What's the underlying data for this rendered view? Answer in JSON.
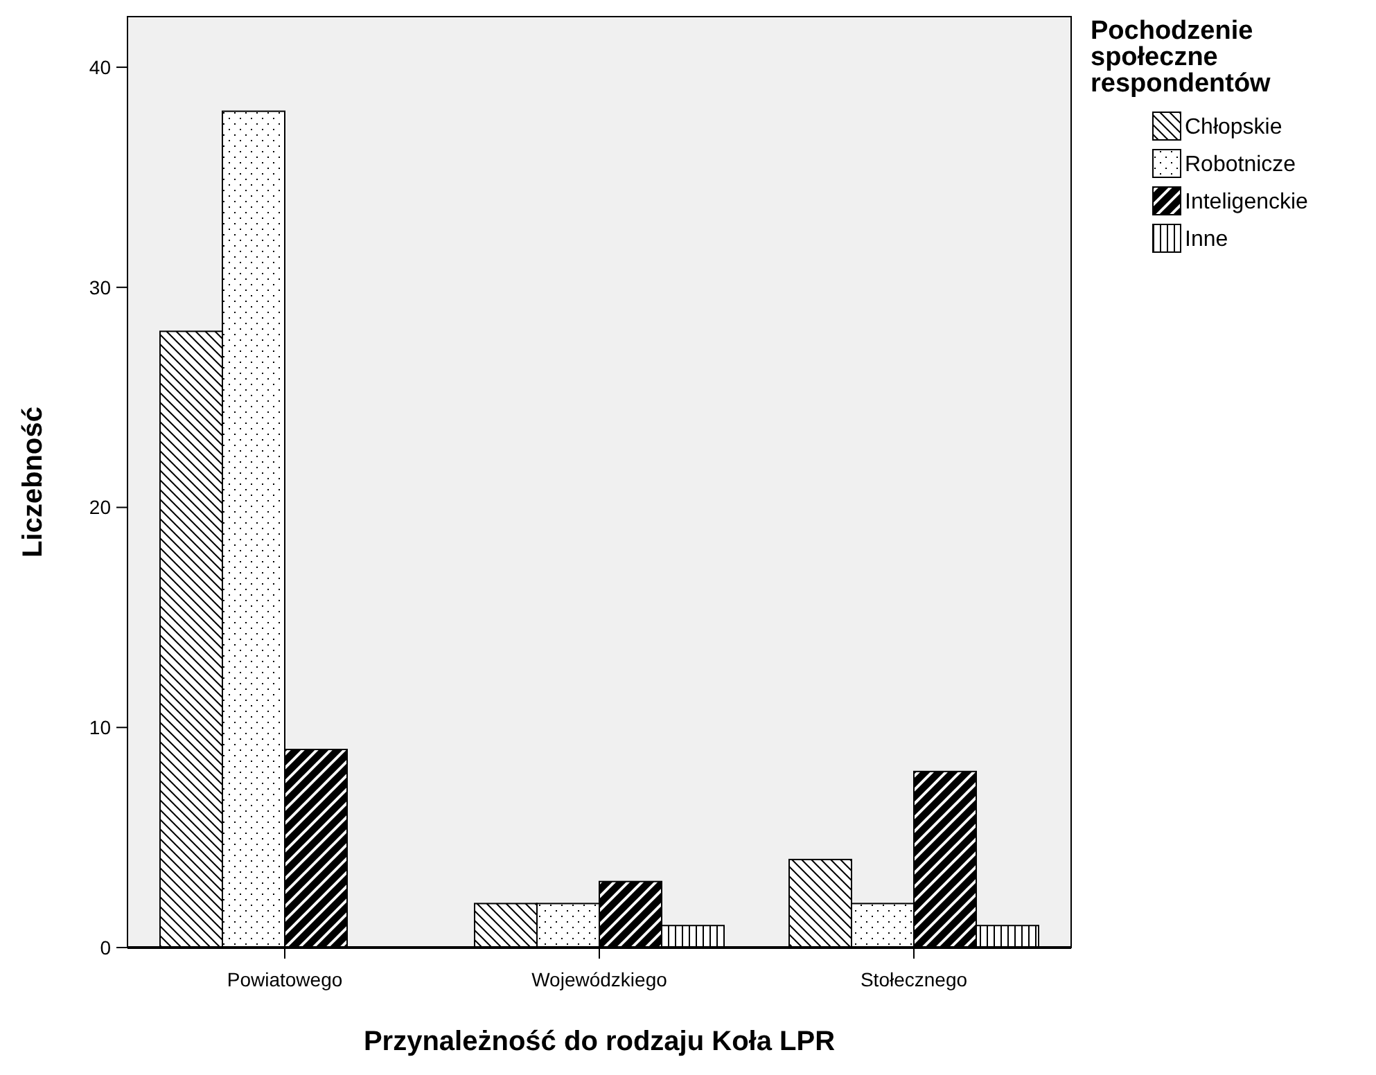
{
  "chart_data": {
    "type": "bar",
    "xlabel": "Przynależność do rodzaju Koła LPR",
    "ylabel": "Liczebność",
    "legend_title": "Pochodzenie społeczne respondentów",
    "categories": [
      "Powiatowego",
      "Wojewódzkiego",
      "Stołecznego"
    ],
    "series": [
      {
        "name": "Chłopskie",
        "color": "#000000",
        "values": [
          28,
          2,
          4
        ]
      },
      {
        "name": "Robotnicze",
        "color": "#000000",
        "values": [
          38,
          2,
          2
        ]
      },
      {
        "name": "Inteligenckie",
        "color": "#000000",
        "values": [
          9,
          3,
          8
        ]
      },
      {
        "name": "Inne",
        "color": "#000000",
        "values": [
          null,
          1,
          1
        ]
      }
    ],
    "ylim": [
      0,
      42.3
    ],
    "yticks": [
      0,
      10,
      20,
      30,
      40
    ],
    "grid": false,
    "legend": "right"
  }
}
